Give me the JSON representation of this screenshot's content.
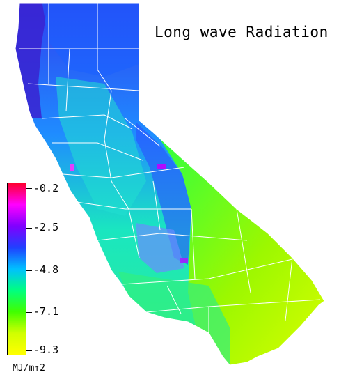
{
  "title": "Long wave Radiation",
  "legend": {
    "ticks": [
      "-0.2",
      "-2.5",
      "-4.8",
      "-7.1",
      "-9.3"
    ],
    "unit": "MJ/m↑2",
    "colors": [
      "#ff0030",
      "#ff00ff",
      "#8000ff",
      "#2040ff",
      "#00c0ff",
      "#00ff80",
      "#40ff00",
      "#d0ff00",
      "#ffff00"
    ]
  },
  "map": {
    "region": "California",
    "palette": {
      "coast_north": "#3b2fd8",
      "north_interior": "#1b6cff",
      "central_valley": "#19e6c8",
      "sierra": "#2a5cff",
      "desert": "#a8f000",
      "south_coast": "#36f07a",
      "border": "#ffffff"
    }
  }
}
